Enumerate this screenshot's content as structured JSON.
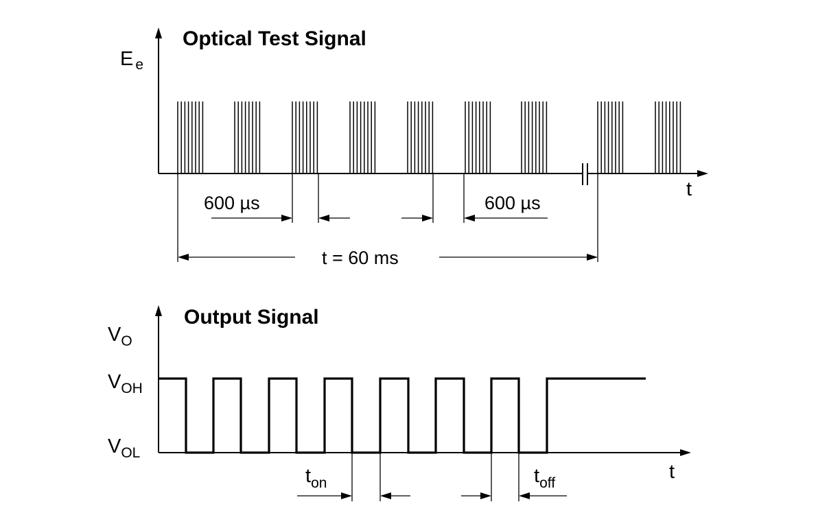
{
  "optical": {
    "title": "Optical Test Signal",
    "y_symbol": "E",
    "y_subscript": "e",
    "x_symbol": "t",
    "dim_burst_left": "600 µs",
    "dim_burst_right": "600 µs",
    "dim_period": "t = 60 ms",
    "burst_count": 9
  },
  "output": {
    "title": "Output Signal",
    "y_symbol": "V",
    "y_subscript": "O",
    "voh_symbol": "V",
    "voh_subscript": "OH",
    "vol_symbol": "V",
    "vol_subscript": "OL",
    "x_symbol": "t",
    "ton_symbol": "t",
    "ton_subscript": "on",
    "toff_symbol": "t",
    "toff_subscript": "off"
  },
  "colors": {
    "ink": "#000000",
    "background": "#ffffff"
  }
}
